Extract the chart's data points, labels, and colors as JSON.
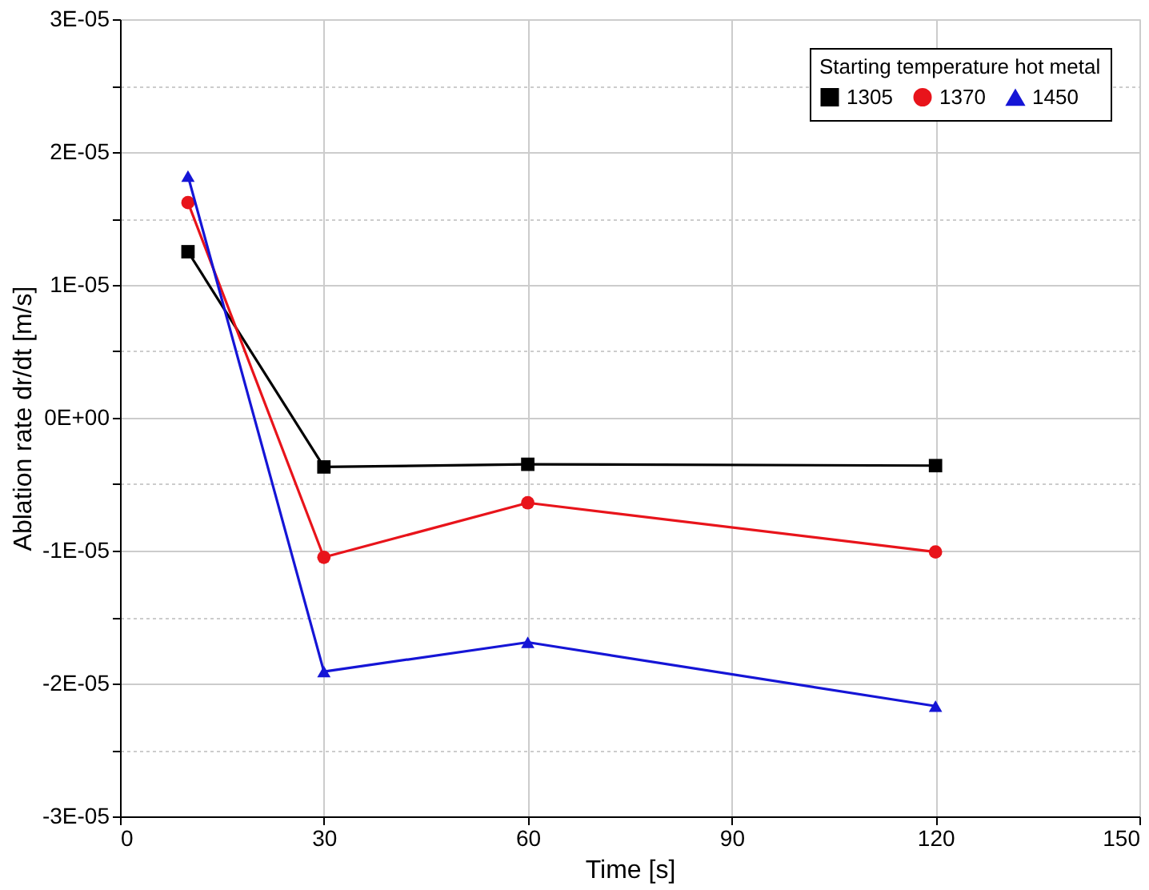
{
  "chart_data": {
    "type": "line",
    "xlabel": "Time [s]",
    "ylabel": "Ablation rate dr/dt [m/s]",
    "legend_title": "Starting temperature hot metal",
    "legend": "top right",
    "grid": true,
    "line_style": "solid",
    "x": [
      10,
      30,
      60,
      120
    ],
    "series": [
      {
        "name": "1305",
        "color": "#000000",
        "marker": "square",
        "values": [
          1.25e-05,
          -3.7e-06,
          -3.5e-06,
          -3.6e-06
        ]
      },
      {
        "name": "1370",
        "color": "#e8141b",
        "marker": "circle",
        "values": [
          1.62e-05,
          -1.05e-05,
          -6.4e-06,
          -1.01e-05
        ]
      },
      {
        "name": "1450",
        "color": "#1515d6",
        "marker": "triangle",
        "values": [
          1.82e-05,
          -1.91e-05,
          -1.69e-05,
          -2.17e-05
        ]
      }
    ],
    "xlim": [
      0,
      150
    ],
    "xticks": [
      0,
      30,
      60,
      90,
      120,
      150
    ],
    "ylim": [
      -3e-05,
      3e-05
    ],
    "yticks": [
      {
        "value": -3e-05,
        "label": "-3E-05"
      },
      {
        "value": -2.5e-05,
        "label": null
      },
      {
        "value": -2e-05,
        "label": "-2E-05"
      },
      {
        "value": -1.5e-05,
        "label": null
      },
      {
        "value": -1e-05,
        "label": "-1E-05"
      },
      {
        "value": -5e-06,
        "label": null
      },
      {
        "value": 0,
        "label": "0E+00"
      },
      {
        "value": 5e-06,
        "label": null
      },
      {
        "value": 1e-05,
        "label": "1E-05"
      },
      {
        "value": 1.5e-05,
        "label": null
      },
      {
        "value": 2e-05,
        "label": "2E-05"
      },
      {
        "value": 2.5e-05,
        "label": null
      },
      {
        "value": 3e-05,
        "label": "3E-05"
      }
    ]
  }
}
